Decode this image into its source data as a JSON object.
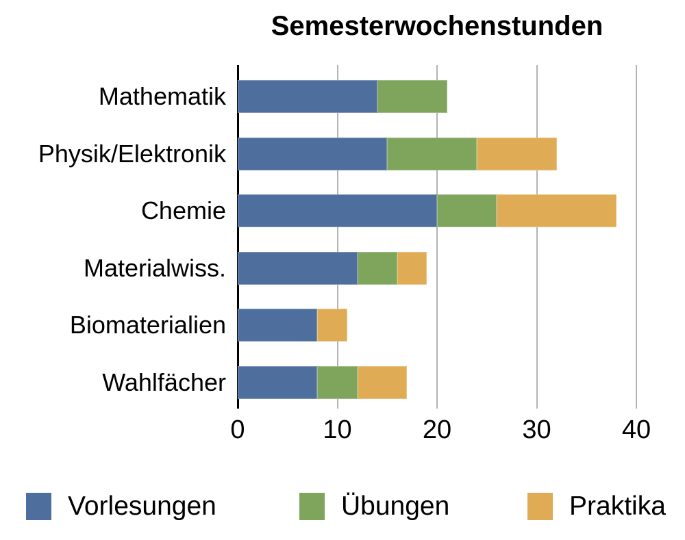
{
  "chart_data": {
    "type": "bar",
    "orientation": "horizontal",
    "stacked": true,
    "title": "Semesterwochenstunden",
    "categories": [
      "Mathematik",
      "Physik/Elektronik",
      "Chemie",
      "Materialwiss.",
      "Biomaterialien",
      "Wahlfächer"
    ],
    "series": [
      {
        "name": "Vorlesungen",
        "color": "#4E6F9D",
        "values": [
          14,
          15,
          20,
          12,
          8,
          8
        ]
      },
      {
        "name": "Übungen",
        "color": "#7FA45B",
        "values": [
          7,
          9,
          6,
          4,
          0,
          4
        ]
      },
      {
        "name": "Praktika",
        "color": "#DFAC55",
        "values": [
          0,
          8,
          12,
          3,
          3,
          5
        ]
      }
    ],
    "xlabel": "",
    "ylabel": "",
    "xlim": [
      0,
      40
    ],
    "x_ticks": [
      0,
      10,
      20,
      30,
      40
    ],
    "x_tick_labels": [
      "0",
      "10",
      "20",
      "30",
      "40"
    ],
    "grid": true,
    "legend_position": "bottom"
  },
  "legend": {
    "items": [
      {
        "label": "Vorlesungen",
        "color": "#4E6F9D"
      },
      {
        "label": "Übungen",
        "color": "#7FA45B"
      },
      {
        "label": "Praktika",
        "color": "#DFAC55"
      }
    ]
  },
  "colors": {
    "background": "#FFFFFF",
    "gridline": "#B3B3B3",
    "zero_axis": "#000000",
    "text": "#000000"
  }
}
